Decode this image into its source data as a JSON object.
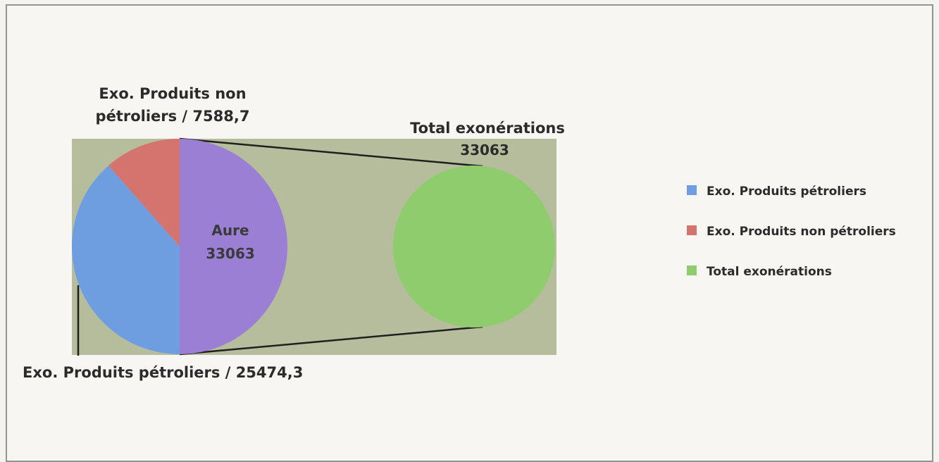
{
  "chart_data": {
    "type": "pie",
    "subtype": "pie-of-pie",
    "slices": [
      {
        "name": "Exo. Produits pétroliers",
        "value": 25474.3,
        "color": "#6f9ee0"
      },
      {
        "name": "Exo. Produits non pétroliers",
        "value": 7588.7,
        "color": "#d5746f"
      },
      {
        "name": "Total exonérations",
        "value": 33063,
        "color": "#8fcc6e"
      }
    ],
    "other_slice": {
      "label": "Aure",
      "value": "33063",
      "color": "#9a7fd4"
    },
    "labels": {
      "non_petroliers_line1": "Exo. Produits non",
      "non_petroliers_line2": "pétroliers / 7588,7",
      "petroliers": "Exo. Produits pétroliers / 25474,3",
      "total_line1": "Total exonérations",
      "total_line2": "33063",
      "aure_line1": "Aure",
      "aure_line2": "33063"
    },
    "legend": {
      "position": "right",
      "items": [
        {
          "name": "Exo. Produits pétroliers",
          "color": "#6f9ee0"
        },
        {
          "name": "Exo. Produits non pétroliers",
          "color": "#d5746f"
        },
        {
          "name": "Total exonérations",
          "color": "#8fcc6e"
        }
      ]
    },
    "plot_background": "#b6bd9c"
  }
}
